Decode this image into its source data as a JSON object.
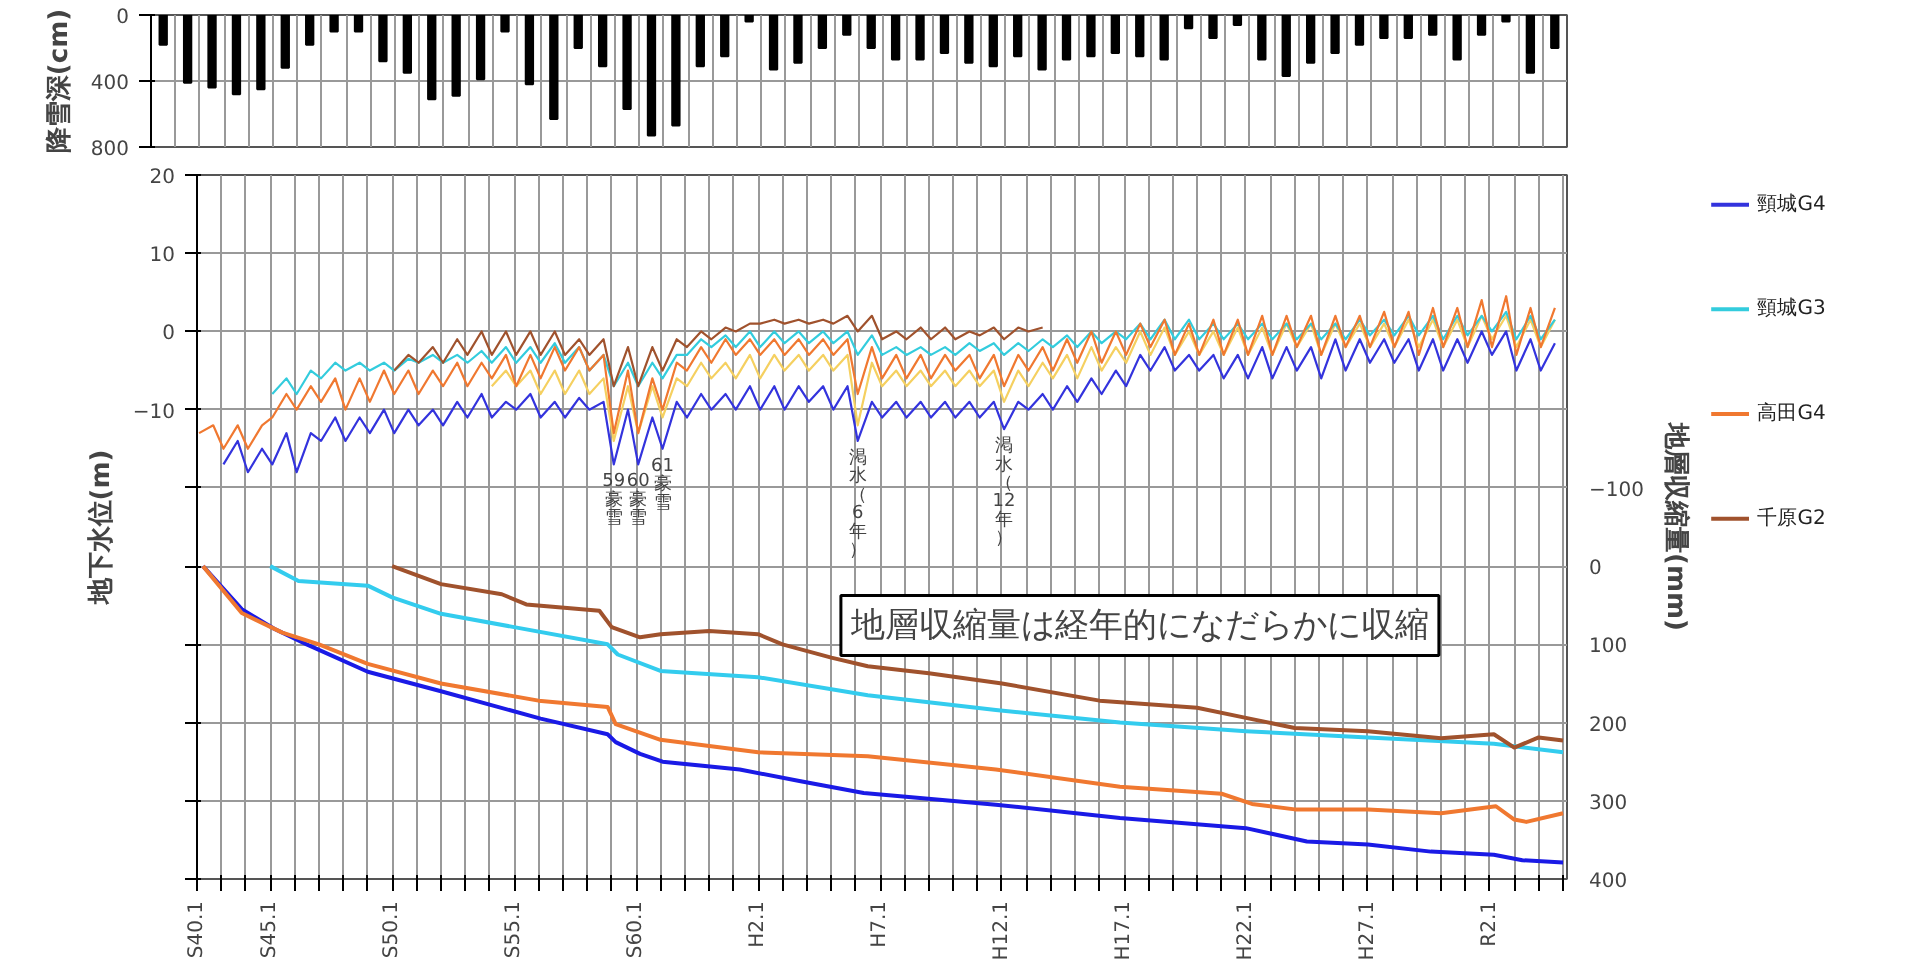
{
  "chart_data": [
    {
      "type": "bar",
      "ylabel": "降雪深(cm)",
      "color": "#000000",
      "categories": [
        null,
        null,
        null,
        null,
        null,
        null,
        null,
        null,
        null,
        null,
        null,
        null,
        null,
        null,
        null,
        null,
        null,
        null,
        null,
        null,
        null,
        null,
        null,
        null,
        null,
        null,
        null,
        null,
        null,
        null,
        null,
        null,
        null,
        null,
        null,
        null,
        null,
        null,
        null,
        null,
        null,
        null,
        null,
        null,
        null,
        null,
        null,
        null,
        null,
        null,
        null,
        null,
        null,
        null,
        null,
        null,
        null,
        null
      ],
      "values": [
        180,
        410,
        440,
        480,
        450,
        320,
        180,
        100,
        100,
        280,
        350,
        510,
        490,
        390,
        100,
        420,
        630,
        200,
        310,
        570,
        730,
        670,
        310,
        250,
        40,
        330,
        290,
        200,
        120,
        200,
        270,
        270,
        230,
        290,
        310,
        250,
        330,
        270,
        250,
        230,
        250,
        270,
        80,
        140,
        60,
        270,
        370,
        290,
        230,
        180,
        140,
        140,
        120,
        270,
        120,
        40,
        350,
        200
      ],
      "ylim": [
        800,
        0
      ],
      "yticks": [
        0,
        400,
        800
      ],
      "tick_labels": "y",
      "grid": true
    },
    {
      "type": "line",
      "ylabel": "地下水位(m)",
      "y2label": "地層収縮量(mm)",
      "legend": "right",
      "grid": true,
      "xlim": [
        "1967-01",
        "2023-03"
      ],
      "ylim": [
        -70,
        20
      ],
      "y2lim": [
        400,
        -500
      ],
      "yticks": [
        20,
        10,
        0,
        -10,
        {
          "value": -20,
          "label": null
        },
        {
          "value": -30,
          "label": null
        },
        {
          "value": -40,
          "label": null
        },
        {
          "value": -50,
          "label": null
        },
        {
          "value": -60,
          "label": null
        },
        {
          "value": -70,
          "label": null
        }
      ],
      "y2ticks": [
        -100,
        0,
        100,
        200,
        300,
        400
      ],
      "xticks": [
        {
          "value": "1967-01",
          "label": "S40.1"
        },
        {
          "value": "1968-01",
          "label": null
        },
        {
          "value": "1969-01",
          "label": null
        },
        {
          "value": "1970-01",
          "label": "S45.1"
        },
        {
          "value": "1971-01",
          "label": null
        },
        {
          "value": "1972-01",
          "label": null
        },
        {
          "value": "1973-01",
          "label": null
        },
        {
          "value": "1974-01",
          "label": null
        },
        {
          "value": "1975-01",
          "label": "S50.1"
        },
        {
          "value": "1976-01",
          "label": null
        },
        {
          "value": "1977-01",
          "label": null
        },
        {
          "value": "1978-01",
          "label": null
        },
        {
          "value": "1979-01",
          "label": null
        },
        {
          "value": "1980-01",
          "label": "S55.1"
        },
        {
          "value": "1981-01",
          "label": null
        },
        {
          "value": "1982-01",
          "label": null
        },
        {
          "value": "1983-01",
          "label": null
        },
        {
          "value": "1984-01",
          "label": null
        },
        {
          "value": "1985-01",
          "label": "S60.1"
        },
        {
          "value": "1986-01",
          "label": null
        },
        {
          "value": "1987-01",
          "label": null
        },
        {
          "value": "1988-01",
          "label": null
        },
        {
          "value": "1989-01",
          "label": null
        },
        {
          "value": "1990-01",
          "label": "H2.1"
        },
        {
          "value": "1991-01",
          "label": null
        },
        {
          "value": "1992-01",
          "label": null
        },
        {
          "value": "1993-01",
          "label": null
        },
        {
          "value": "1994-01",
          "label": null
        },
        {
          "value": "1995-01",
          "label": "H7.1"
        },
        {
          "value": "1996-01",
          "label": null
        },
        {
          "value": "1997-01",
          "label": null
        },
        {
          "value": "1998-01",
          "label": null
        },
        {
          "value": "1999-01",
          "label": null
        },
        {
          "value": "2000-01",
          "label": "H12.1"
        },
        {
          "value": "2001-01",
          "label": null
        },
        {
          "value": "2002-01",
          "label": null
        },
        {
          "value": "2003-01",
          "label": null
        },
        {
          "value": "2004-01",
          "label": null
        },
        {
          "value": "2005-01",
          "label": "H17.1"
        },
        {
          "value": "2006-01",
          "label": null
        },
        {
          "value": "2007-01",
          "label": null
        },
        {
          "value": "2008-01",
          "label": null
        },
        {
          "value": "2009-01",
          "label": null
        },
        {
          "value": "2010-01",
          "label": "H22.1"
        },
        {
          "value": "2011-01",
          "label": null
        },
        {
          "value": "2012-01",
          "label": null
        },
        {
          "value": "2013-01",
          "label": null
        },
        {
          "value": "2014-01",
          "label": null
        },
        {
          "value": "2015-01",
          "label": "H27.1"
        },
        {
          "value": "2016-01",
          "label": null
        },
        {
          "value": "2017-01",
          "label": null
        },
        {
          "value": "2018-01",
          "label": null
        },
        {
          "value": "2019-01",
          "label": null
        },
        {
          "value": "2020-01",
          "label": "R2.1"
        },
        {
          "value": "2021-01",
          "label": null
        },
        {
          "value": "2022-01",
          "label": null
        },
        {
          "value": "2023-01",
          "label": null
        }
      ],
      "x": [
        "1967-02",
        "1967-09",
        "1968-02",
        "1968-09",
        "1969-02",
        "1969-09",
        "1970-02",
        "1970-09",
        "1971-02",
        "1971-09",
        "1972-02",
        "1972-09",
        "1973-02",
        "1973-09",
        "1974-02",
        "1974-09",
        "1975-02",
        "1975-09",
        "1976-02",
        "1976-09",
        "1977-02",
        "1977-09",
        "1978-02",
        "1978-09",
        "1979-02",
        "1979-09",
        "1980-02",
        "1980-09",
        "1981-02",
        "1981-09",
        "1982-02",
        "1982-09",
        "1983-02",
        "1983-09",
        "1984-02",
        "1984-09",
        "1985-02",
        "1985-09",
        "1986-02",
        "1986-09",
        "1987-02",
        "1987-09",
        "1988-02",
        "1988-09",
        "1989-02",
        "1989-09",
        "1990-02",
        "1990-09",
        "1991-02",
        "1991-09",
        "1992-02",
        "1992-09",
        "1993-02",
        "1993-09",
        "1994-02",
        "1994-09",
        "1995-02",
        "1995-09",
        "1996-02",
        "1996-09",
        "1997-02",
        "1997-09",
        "1998-02",
        "1998-09",
        "1999-02",
        "1999-09",
        "2000-02",
        "2000-09",
        "2001-02",
        "2001-09",
        "2002-02",
        "2002-09",
        "2003-02",
        "2003-09",
        "2004-02",
        "2004-09",
        "2005-02",
        "2005-09",
        "2006-02",
        "2006-09",
        "2007-02",
        "2007-09",
        "2008-02",
        "2008-09",
        "2009-02",
        "2009-09",
        "2010-02",
        "2010-09",
        "2011-02",
        "2011-09",
        "2012-02",
        "2012-09",
        "2013-02",
        "2013-09",
        "2014-02",
        "2014-09",
        "2015-02",
        "2015-09",
        "2016-02",
        "2016-09",
        "2017-02",
        "2017-09",
        "2018-02",
        "2018-09",
        "2019-02",
        "2019-09",
        "2020-02",
        "2020-09",
        "2021-02",
        "2021-09",
        "2022-02",
        "2022-09"
      ],
      "series": [
        {
          "color": "#f5d060",
          "values": [
            null,
            null,
            null,
            null,
            null,
            null,
            null,
            null,
            null,
            null,
            null,
            null,
            null,
            null,
            null,
            null,
            null,
            null,
            null,
            null,
            null,
            null,
            null,
            null,
            -7,
            -5,
            -7,
            -5,
            -8,
            -5,
            -8,
            -5,
            -8,
            -6,
            -14,
            -7,
            -13,
            -7,
            -11,
            -6,
            -7,
            -4,
            -6,
            -4,
            -6,
            -3,
            -6,
            -3,
            -5,
            -3,
            -5,
            -3,
            -5,
            -3,
            -12,
            -4,
            -7,
            -5,
            -7,
            -5,
            -7,
            -5,
            -7,
            -5,
            -7,
            -5,
            -9,
            -5,
            -7,
            -4,
            -6,
            -3,
            -6,
            -2,
            -5,
            -2,
            -4,
            0,
            -3,
            0.5,
            -3,
            0,
            -3,
            0,
            -3,
            0.5,
            -3,
            0.5,
            -3,
            1,
            -2,
            1,
            -3,
            1,
            -2,
            1,
            -2,
            1,
            -2,
            1.5,
            -2,
            1.5,
            -2,
            1.5,
            -2,
            2,
            -1,
            2,
            -2,
            1.5,
            -2,
            1.5
          ]
        },
        {
          "name": "頸城G4",
          "color": "#3333dd",
          "values": [
            null,
            null,
            -17,
            -14,
            -18,
            -15,
            -17,
            -13,
            -18,
            -13,
            -14,
            -11,
            -14,
            -11,
            -13,
            -10,
            -13,
            -10,
            -12,
            -10,
            -12,
            -9,
            -11,
            -8,
            -11,
            -9,
            -10,
            -8,
            -11,
            -9,
            -11,
            -8.5,
            -10,
            -9,
            -17,
            -10,
            -17,
            -11,
            -15,
            -9,
            -11,
            -8,
            -10,
            -8,
            -10,
            -7,
            -10,
            -7,
            -10,
            -7,
            -9,
            -7,
            -10,
            -7,
            -14,
            -9,
            -11,
            -9,
            -11,
            -9,
            -11,
            -9,
            -11,
            -9,
            -11,
            -9,
            -12.5,
            -9,
            -10,
            -8,
            -10,
            -7,
            -9,
            -6,
            -8,
            -5,
            -7,
            -3,
            -5,
            -2,
            -5,
            -3,
            -5,
            -3,
            -6,
            -3,
            -6,
            -2,
            -6,
            -2,
            -5,
            -2,
            -6,
            -1,
            -5,
            -1,
            -4,
            -1,
            -4,
            -1,
            -5,
            -1,
            -5,
            -1,
            -4,
            0,
            -3,
            0,
            -5,
            -1,
            -5,
            -1.5
          ]
        },
        {
          "name": "頸城G3",
          "color": "#33ccdd",
          "values": [
            null,
            null,
            null,
            null,
            null,
            null,
            -8,
            -6,
            -8,
            -5,
            -6,
            -4,
            -5,
            -4,
            -5,
            -4,
            -5,
            -3.5,
            -4,
            -3,
            -4,
            -3,
            -4,
            -2.5,
            -4,
            -2,
            -4,
            -2,
            -4,
            -1.5,
            -4,
            -2,
            -5,
            -3,
            -7,
            -4,
            -7,
            -4,
            -6,
            -3,
            -3,
            -1,
            -2,
            -0.5,
            -2,
            0,
            -2,
            0,
            -1.5,
            0,
            -1.5,
            0,
            -1.5,
            0,
            -3,
            -0.5,
            -3,
            -2,
            -3,
            -2,
            -3,
            -2,
            -3,
            -1.5,
            -2.5,
            -1.5,
            -3,
            -1.5,
            -2.5,
            -1,
            -2,
            -0.5,
            -2,
            0,
            -1.5,
            0,
            -1,
            1,
            -1,
            1.5,
            -1,
            1.5,
            -1,
            1,
            -1,
            1,
            -1,
            1,
            -1,
            1,
            -1,
            1,
            -1,
            1,
            -1,
            1.5,
            -0.5,
            1.5,
            -0.5,
            2,
            -0.5,
            2,
            -1,
            2,
            -0.5,
            2,
            0,
            2.5,
            -1,
            2,
            -1,
            1.5
          ]
        },
        {
          "name": "高田G4",
          "color": "#f07830",
          "values": [
            -13,
            -12,
            -15,
            -12,
            -15,
            -12,
            -11,
            -8,
            -10,
            -7,
            -9,
            -6,
            -10,
            -6,
            -9,
            -5,
            -8,
            -5,
            -8,
            -5,
            -7,
            -4,
            -7,
            -4,
            -6,
            -3,
            -7,
            -3,
            -6,
            -2,
            -5,
            -2,
            -5,
            -3,
            -13,
            -5,
            -13,
            -6,
            -10,
            -4,
            -5,
            -2,
            -4,
            -1,
            -3,
            -1,
            -3,
            -1,
            -3,
            -1,
            -3,
            -1,
            -3,
            -1,
            -8,
            -2,
            -6,
            -3,
            -6,
            -3,
            -6,
            -3,
            -5,
            -3,
            -6,
            -3,
            -7,
            -3,
            -5,
            -2,
            -5,
            -1,
            -4,
            0,
            -4,
            0,
            -3,
            1,
            -2,
            1.5,
            -3,
            1,
            -3,
            1.5,
            -3,
            1.5,
            -3,
            2,
            -3,
            2,
            -2,
            2,
            -3,
            2,
            -2,
            2,
            -2,
            2.5,
            -2,
            2.5,
            -3,
            3,
            -2,
            3,
            -2,
            4,
            -2,
            4.5,
            -3,
            3,
            -2,
            3
          ]
        },
        {
          "name": "千原G2",
          "color": "#a0522d",
          "values": [
            null,
            null,
            null,
            null,
            null,
            null,
            null,
            null,
            null,
            null,
            null,
            null,
            null,
            null,
            null,
            null,
            -5,
            -3,
            -4,
            -2,
            -4,
            -1,
            -3,
            0,
            -3,
            0,
            -3,
            0,
            -3,
            0,
            -3,
            -1,
            -3,
            -1,
            -7,
            -2,
            -7,
            -2,
            -5,
            -1,
            -2,
            0,
            -1,
            0.5,
            0,
            1,
            1,
            1.5,
            1,
            1.5,
            1,
            1.5,
            1,
            2,
            0,
            2,
            -1,
            0,
            -1,
            0.5,
            -1,
            0.5,
            -1,
            0,
            -0.5,
            0.5,
            -1,
            0.5,
            0,
            0.5,
            null,
            null,
            null,
            null,
            null,
            null,
            null,
            null,
            null,
            null,
            null,
            null,
            null,
            null,
            null,
            null,
            null,
            null,
            null,
            null,
            null,
            null,
            null,
            null,
            null,
            null,
            null,
            null,
            null,
            null,
            null,
            null,
            null,
            null,
            null,
            null,
            null,
            null,
            null,
            null,
            null,
            null
          ]
        },
        {
          "color": "#1a1ae6",
          "axis": "y2",
          "x": [
            "1967-04",
            "1968-11",
            "1970-03",
            "1971-07",
            "1974-01",
            "1977-01",
            "1981-02",
            "1983-11",
            "1984-03",
            "1985-03",
            "1986-02",
            "1989-04",
            "1991-10",
            "1994-05",
            "1999-10",
            "2004-11",
            "2010-01",
            "2012-07",
            "2015-01",
            "2017-08",
            "2020-03",
            "2021-05",
            "2023-01"
          ],
          "values": [
            0,
            55,
            80,
            100,
            135,
            160,
            195,
            215,
            225,
            240,
            250,
            260,
            275,
            290,
            305,
            322,
            335,
            352,
            356,
            365,
            369,
            376,
            379
          ]
        },
        {
          "color": "#33ccee",
          "axis": "y2",
          "x": [
            "1970-01",
            "1971-03",
            "1974-01",
            "1975-01",
            "1977-01",
            "1980-01",
            "1983-11",
            "1984-04",
            "1986-01",
            "1990-01",
            "1994-07",
            "1999-10",
            "2004-11",
            "2010-01",
            "2015-01",
            "2020-03",
            "2023-01"
          ],
          "values": [
            0,
            19,
            25,
            40,
            61,
            78,
            100,
            113,
            134,
            142,
            165,
            184,
            200,
            211,
            219,
            227,
            238
          ]
        },
        {
          "color": "#f07830",
          "axis": "y2",
          "x": [
            "1967-04",
            "1968-11",
            "1970-07",
            "1972-01",
            "1974-01",
            "1977-01",
            "1981-01",
            "1983-11",
            "1984-03",
            "1986-01",
            "1990-01",
            "1994-07",
            "1999-10",
            "2004-11",
            "2009-01",
            "2010-04",
            "2012-01",
            "2015-01",
            "2018-01",
            "2020-04",
            "2021-01",
            "2021-07",
            "2023-01"
          ],
          "values": [
            0,
            60,
            85,
            100,
            125,
            150,
            172,
            180,
            202,
            222,
            238,
            243,
            260,
            282,
            291,
            304,
            311,
            311,
            316,
            307,
            324,
            327,
            316
          ]
        },
        {
          "color": "#a0522d",
          "axis": "y2",
          "x": [
            "1975-01",
            "1977-01",
            "1979-07",
            "1980-07",
            "1983-07",
            "1984-01",
            "1985-03",
            "1986-01",
            "1988-01",
            "1990-01",
            "1991-01",
            "1993-01",
            "1994-07",
            "1997-01",
            "2000-01",
            "2004-01",
            "2008-01",
            "2010-01",
            "2012-01",
            "2015-01",
            "2018-01",
            "2020-03",
            "2021-01",
            "2022-01",
            "2023-01"
          ],
          "values": [
            0,
            23,
            36,
            49,
            57,
            78,
            91,
            87,
            83,
            87,
            100,
            117,
            128,
            137,
            150,
            172,
            181,
            194,
            207,
            211,
            220,
            215,
            232,
            219,
            223
          ]
        }
      ],
      "annotations": [
        {
          "text": "59豪雪",
          "x": "1984-02",
          "y": -17
        },
        {
          "text": "60豪雪",
          "x": "1985-02",
          "y": -17
        },
        {
          "text": "61豪雪",
          "x": "1986-02",
          "y": -15
        },
        {
          "text": "渇水（6年）",
          "x": "1994-02",
          "y": -14
        },
        {
          "text": "渇水（12年）",
          "x": "2000-02",
          "y": -12.5
        },
        "地層収縮量は経年的になだらかに収縮"
      ]
    }
  ]
}
